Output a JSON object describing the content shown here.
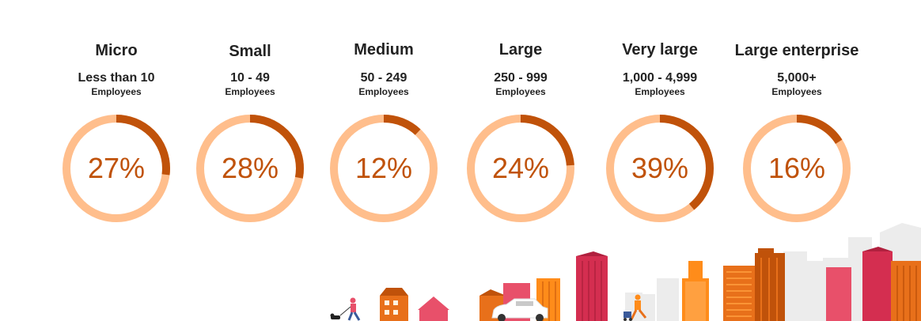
{
  "chart_data": {
    "type": "pie",
    "variant": "donut",
    "colors": {
      "track": "#ffbe8c",
      "fill": "#c0520a",
      "value_text": "#c0520a"
    },
    "categories": [
      {
        "title": "Micro",
        "range": "Less than 10",
        "unit": "Employees",
        "value": 27,
        "label": "27%"
      },
      {
        "title": "Small",
        "range": "10 - 49",
        "unit": "Employees",
        "value": 28,
        "label": "28%"
      },
      {
        "title": "Medium",
        "range": "50 - 249",
        "unit": "Employees",
        "value": 12,
        "label": "12%"
      },
      {
        "title": "Large",
        "range": "250 - 999",
        "unit": "Employees",
        "value": 24,
        "label": "24%"
      },
      {
        "title": "Very large",
        "range": "1,000 - 4,999",
        "unit": "Employees",
        "value": 39,
        "label": "39%"
      },
      {
        "title": "Large enterprise",
        "range": "5,000+",
        "unit": "Employees",
        "value": 16,
        "label": "16%"
      }
    ]
  },
  "illustration": {
    "icon": "city-skyline-icon"
  }
}
